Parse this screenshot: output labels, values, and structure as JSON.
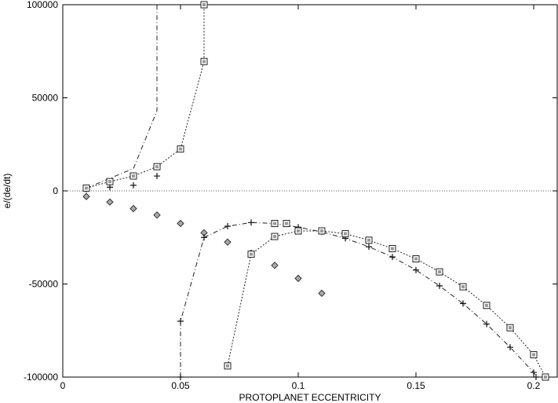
{
  "chart_data": {
    "type": "scatter",
    "title": "",
    "xlabel": "PROTOPLANET ECCENTRICITY",
    "ylabel": "e/(de/dt)",
    "xlim": [
      0,
      0.21
    ],
    "ylim": [
      -100000,
      100000
    ],
    "x_ticks": [
      0,
      0.05,
      0.1,
      0.15,
      0.2
    ],
    "x_tick_labels": [
      "0",
      "0.05",
      "0.1",
      "0.15",
      "0.2"
    ],
    "y_ticks": [
      -100000,
      -50000,
      0,
      50000,
      100000
    ],
    "y_tick_labels": [
      "-100000",
      "-50000",
      "0",
      "50000",
      "100000"
    ],
    "grid": false,
    "zero_line": true,
    "series": [
      {
        "marker": "diamond",
        "line": "none",
        "points": [
          [
            0.01,
            -3000
          ],
          [
            0.02,
            -6000
          ],
          [
            0.03,
            -9500
          ],
          [
            0.04,
            -13000
          ],
          [
            0.05,
            -17500
          ],
          [
            0.06,
            -22500
          ],
          [
            0.07,
            -27500
          ],
          [
            0.08,
            -33500
          ],
          [
            0.09,
            -40000
          ],
          [
            0.1,
            -47000
          ],
          [
            0.11,
            -55000
          ]
        ]
      },
      {
        "marker": "plus",
        "line": "none",
        "points": [
          [
            0.01,
            1000
          ],
          [
            0.02,
            2000
          ],
          [
            0.03,
            3000
          ],
          [
            0.04,
            8000
          ]
        ]
      },
      {
        "marker": "none",
        "line": "dash-dot",
        "points": [
          [
            0.01,
            1500
          ],
          [
            0.03,
            12000
          ],
          [
            0.04,
            43000
          ],
          [
            0.04,
            100000
          ]
        ]
      },
      {
        "marker": "square",
        "line": "dotted",
        "points": [
          [
            0.01,
            1500
          ],
          [
            0.02,
            5000
          ],
          [
            0.03,
            8000
          ],
          [
            0.04,
            13000
          ],
          [
            0.05,
            22500
          ],
          [
            0.06,
            69500
          ],
          [
            0.06,
            100000
          ]
        ]
      },
      {
        "marker": "plus",
        "line": "dash-dot",
        "points": [
          [
            0.05,
            -100000
          ],
          [
            0.05,
            -70000
          ],
          [
            0.06,
            -25000
          ],
          [
            0.07,
            -19000
          ],
          [
            0.08,
            -17000
          ],
          [
            0.09,
            -17500
          ],
          [
            0.1,
            -19500
          ],
          [
            0.11,
            -22000
          ],
          [
            0.12,
            -25500
          ],
          [
            0.13,
            -30000
          ],
          [
            0.14,
            -35500
          ],
          [
            0.15,
            -42500
          ],
          [
            0.16,
            -51000
          ],
          [
            0.17,
            -60500
          ],
          [
            0.18,
            -71500
          ],
          [
            0.19,
            -84000
          ],
          [
            0.2,
            -97500
          ],
          [
            0.201,
            -100000
          ]
        ]
      },
      {
        "marker": "square",
        "line": "dotted",
        "points": [
          [
            0.07,
            -94000
          ],
          [
            0.08,
            -34000
          ],
          [
            0.09,
            -24500
          ],
          [
            0.1,
            -21500
          ],
          [
            0.11,
            -21500
          ],
          [
            0.12,
            -23000
          ],
          [
            0.13,
            -26500
          ],
          [
            0.14,
            -31000
          ],
          [
            0.15,
            -36500
          ],
          [
            0.16,
            -43500
          ],
          [
            0.17,
            -51500
          ],
          [
            0.18,
            -61500
          ],
          [
            0.19,
            -73500
          ],
          [
            0.2,
            -88000
          ],
          [
            0.205,
            -100000
          ]
        ]
      },
      {
        "marker": "square",
        "line": "none",
        "points": [
          [
            0.09,
            -17500
          ],
          [
            0.095,
            -17500
          ],
          [
            0.1,
            -21500
          ]
        ]
      }
    ]
  }
}
